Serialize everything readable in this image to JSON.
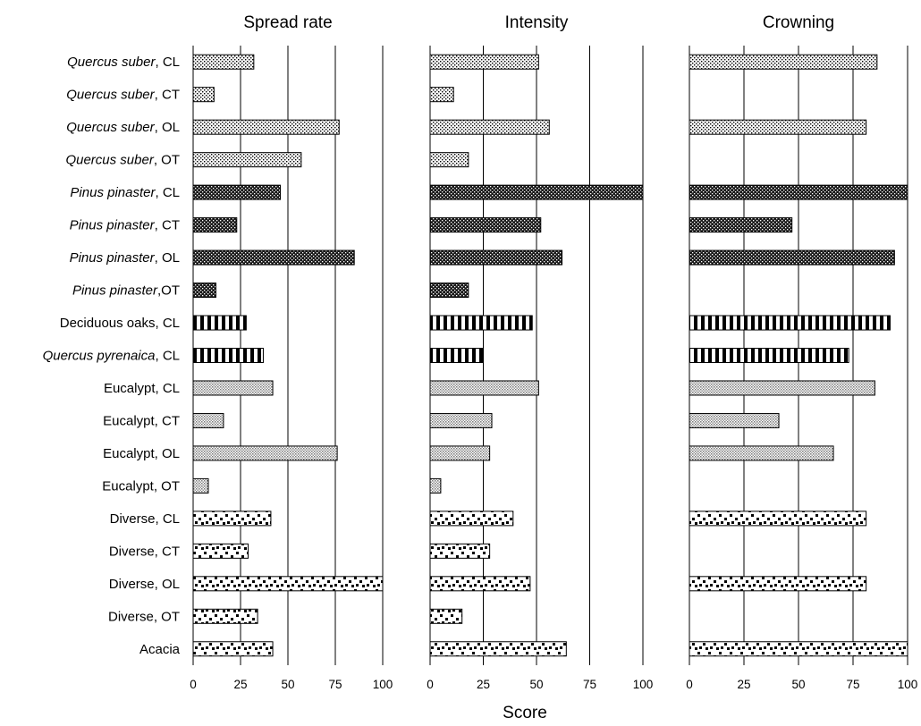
{
  "chart_data": {
    "type": "bar",
    "orientation": "horizontal",
    "categories": [
      {
        "italic": "Quercus suber",
        "rest": ", CL",
        "group": "qs"
      },
      {
        "italic": "Quercus suber",
        "rest": ", CT",
        "group": "qs"
      },
      {
        "italic": "Quercus suber",
        "rest": ", OL",
        "group": "qs"
      },
      {
        "italic": "Quercus suber",
        "rest": ", OT",
        "group": "qs"
      },
      {
        "italic": "Pinus pinaster",
        "rest": ", CL",
        "group": "pp"
      },
      {
        "italic": "Pinus pinaster",
        "rest": ", CT",
        "group": "pp"
      },
      {
        "italic": "Pinus pinaster",
        "rest": ", OL",
        "group": "pp"
      },
      {
        "italic": "Pinus pinaster",
        "rest": ",OT",
        "group": "pp"
      },
      {
        "italic": "",
        "rest": "Deciduous oaks, CL",
        "group": "oak"
      },
      {
        "italic": "Quercus pyrenaica",
        "rest": ", CL",
        "group": "oak"
      },
      {
        "italic": "",
        "rest": "Eucalypt, CL",
        "group": "eu"
      },
      {
        "italic": "",
        "rest": "Eucalypt, CT",
        "group": "eu"
      },
      {
        "italic": "",
        "rest": "Eucalypt, OL",
        "group": "eu"
      },
      {
        "italic": "",
        "rest": "Eucalypt, OT",
        "group": "eu"
      },
      {
        "italic": "",
        "rest": "Diverse, CL",
        "group": "dv"
      },
      {
        "italic": "",
        "rest": "Diverse, CT",
        "group": "dv"
      },
      {
        "italic": "",
        "rest": "Diverse, OL",
        "group": "dv"
      },
      {
        "italic": "",
        "rest": "Diverse, OT",
        "group": "dv"
      },
      {
        "italic": "",
        "rest": "Acacia",
        "group": "dv"
      }
    ],
    "panels": [
      {
        "title": "Spread rate",
        "xlim": [
          0,
          100
        ],
        "ticks": [
          0,
          25,
          50,
          75,
          100
        ],
        "values": [
          32,
          11,
          77,
          57,
          46,
          23,
          85,
          12,
          28,
          37,
          42,
          16,
          76,
          8,
          41,
          29,
          100,
          34,
          42
        ]
      },
      {
        "title": "Intensity",
        "xlim": [
          0,
          100
        ],
        "ticks": [
          0,
          25,
          50,
          75,
          100
        ],
        "values": [
          51,
          11,
          56,
          18,
          100,
          52,
          62,
          18,
          48,
          25,
          51,
          29,
          28,
          5,
          39,
          28,
          47,
          15,
          64
        ]
      },
      {
        "title": "Crowning",
        "xlim": [
          0,
          100
        ],
        "ticks": [
          0,
          25,
          50,
          75,
          100
        ],
        "values": [
          86,
          null,
          81,
          null,
          100,
          47,
          94,
          null,
          92,
          73,
          85,
          41,
          66,
          null,
          81,
          null,
          81,
          null,
          100
        ]
      }
    ],
    "xlabel": "Score",
    "grid": "vertical",
    "legend": "none"
  }
}
